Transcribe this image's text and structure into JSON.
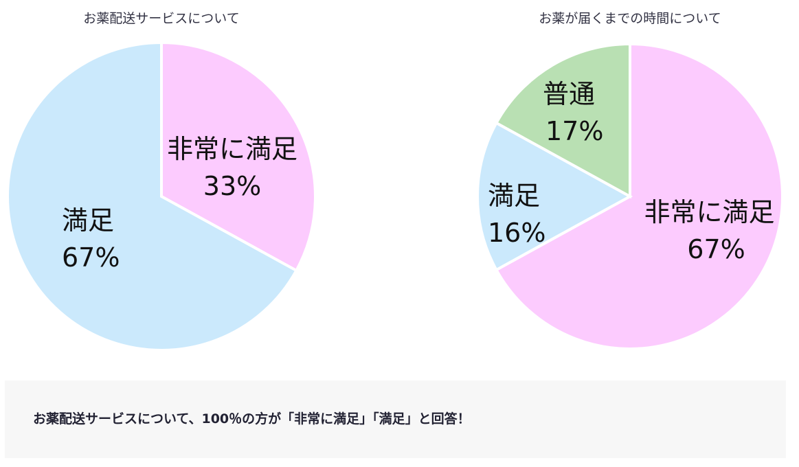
{
  "chart_data": [
    {
      "type": "pie",
      "title": "お薬配送サービスについて",
      "slices": [
        {
          "label": "非常に満足",
          "value": 33,
          "display": "33%",
          "color": "#fccbfe"
        },
        {
          "label": "満足",
          "value": 67,
          "display": "67%",
          "color": "#cbe9fc"
        }
      ]
    },
    {
      "type": "pie",
      "title": "お薬が届くまでの時間について",
      "slices": [
        {
          "label": "非常に満足",
          "value": 67,
          "display": "67%",
          "color": "#fccbfe"
        },
        {
          "label": "満足",
          "value": 16,
          "display": "16%",
          "color": "#cbe9fc"
        },
        {
          "label": "普通",
          "value": 17,
          "display": "17%",
          "color": "#b9e0b3"
        }
      ]
    }
  ],
  "summary": "お薬配送サービスについて、100％の方が「非常に満足」「満足」と回答！"
}
